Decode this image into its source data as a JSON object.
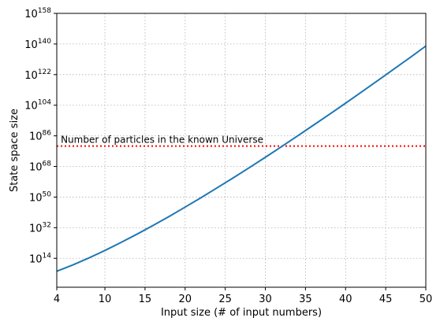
{
  "chart_data": {
    "type": "line",
    "title": "",
    "xlabel": "Input size (# of input numbers)",
    "ylabel": "State space size",
    "x_ticks": [
      4,
      10,
      15,
      20,
      25,
      30,
      35,
      40,
      45,
      50
    ],
    "xlim": [
      4,
      50
    ],
    "y_scale": "log10",
    "y_exponent_ticks": [
      14,
      32,
      50,
      68,
      86,
      104,
      122,
      140,
      158
    ],
    "y_tick_labels": [
      "10^14",
      "10^32",
      "10^50",
      "10^68",
      "10^86",
      "10^104",
      "10^122",
      "10^140",
      "10^158"
    ],
    "ylim_log10": [
      -3,
      158
    ],
    "grid": true,
    "series": [
      {
        "color": "#1f77b4",
        "x": [
          4,
          6,
          8,
          10,
          12,
          14,
          16,
          18,
          20,
          22,
          24,
          26,
          28,
          30,
          32,
          34,
          36,
          38,
          40,
          42,
          44,
          46,
          48,
          50
        ],
        "y_log10": [
          6.4,
          10.1,
          14.2,
          18.6,
          23.3,
          28.2,
          33.3,
          38.6,
          44.1,
          49.7,
          55.5,
          61.3,
          67.3,
          73.4,
          79.6,
          85.9,
          92.3,
          98.7,
          105.2,
          111.8,
          118.5,
          125.2,
          131.9,
          138.8
        ]
      }
    ],
    "reference_line": {
      "label": "Number of particles in the known Universe",
      "y_log10": 80,
      "color": "#ff0000",
      "style": "dotted"
    }
  }
}
